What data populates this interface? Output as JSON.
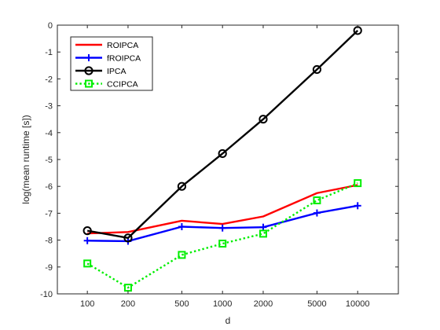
{
  "chart_data": {
    "type": "line",
    "title": "",
    "xlabel": "d",
    "ylabel": "log(mean runtime [s])",
    "x": [
      100,
      200,
      500,
      1000,
      2000,
      5000,
      10000
    ],
    "x_tick_labels": [
      "100",
      "200",
      "500",
      "1000",
      "2000",
      "5000",
      "10000"
    ],
    "x_scale": "log",
    "xlim": [
      60,
      20000
    ],
    "ylim": [
      -10,
      0
    ],
    "y_ticks": [
      0,
      -1,
      -2,
      -3,
      -4,
      -5,
      -6,
      -7,
      -8,
      -9,
      -10
    ],
    "y_tick_labels": [
      "0",
      "-1",
      "-2",
      "-3",
      "-4",
      "-5",
      "-6",
      "-7",
      "-8",
      "-9",
      "-10"
    ],
    "grid": false,
    "legend_position": "top-left",
    "series": [
      {
        "name": "ROIPCA",
        "color": "#ff0000",
        "line_style": "solid",
        "marker": "none",
        "values": [
          -7.75,
          -7.7,
          -7.28,
          -7.4,
          -7.12,
          -6.25,
          -5.95
        ]
      },
      {
        "name": "fROIPCA",
        "color": "#0000ff",
        "line_style": "solid",
        "marker": "plus",
        "values": [
          -8.02,
          -8.04,
          -7.5,
          -7.55,
          -7.52,
          -6.99,
          -6.72
        ]
      },
      {
        "name": "IPCA",
        "color": "#000000",
        "line_style": "solid",
        "marker": "circle",
        "values": [
          -7.65,
          -7.92,
          -6.0,
          -4.78,
          -3.5,
          -1.65,
          -0.2
        ]
      },
      {
        "name": "CCIPCA",
        "color": "#00ee00",
        "line_style": "dotted",
        "marker": "square",
        "values": [
          -8.87,
          -9.77,
          -8.55,
          -8.13,
          -7.76,
          -6.52,
          -5.88
        ]
      }
    ]
  }
}
